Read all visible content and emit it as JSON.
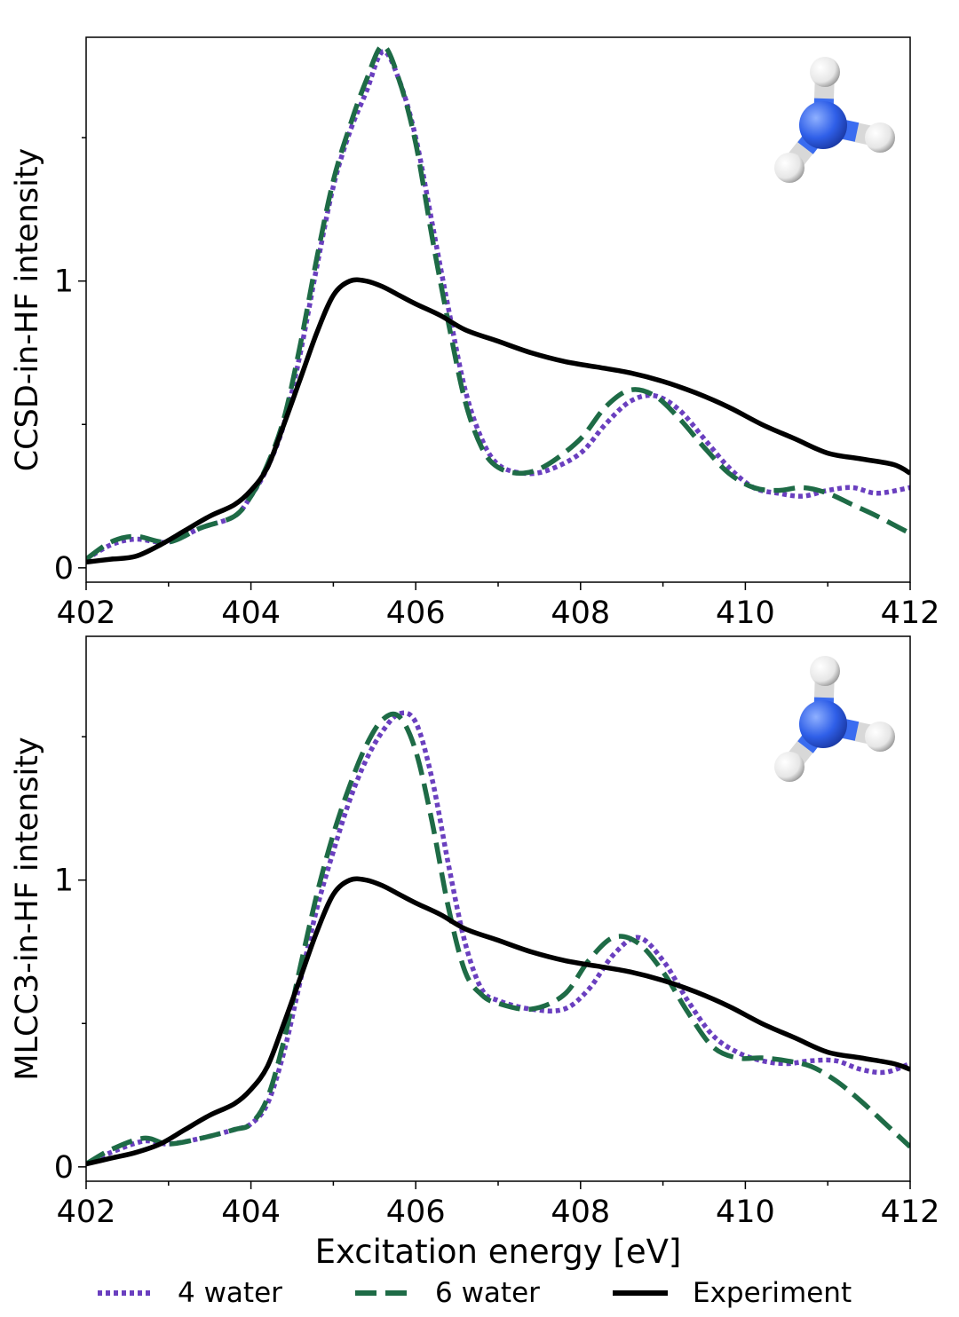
{
  "chart_data": [
    {
      "type": "line",
      "ylabel": "CCSD-in-HF intensity",
      "xlabel": "",
      "xlim": [
        402,
        412
      ],
      "ylim": [
        -0.05,
        1.85
      ],
      "xticks": [
        "402",
        "404",
        "406",
        "408",
        "410",
        "412"
      ],
      "yticks": [
        "0",
        "1"
      ],
      "inset_icon": "ammonia-molecule-icon",
      "series": [
        {
          "name": "4 water",
          "style": "dotted",
          "color": "#6a3fbf",
          "x": [
            402.0,
            402.3,
            402.6,
            403.0,
            403.4,
            403.8,
            404.0,
            404.2,
            404.4,
            404.6,
            404.8,
            405.0,
            405.2,
            405.4,
            405.6,
            405.8,
            406.0,
            406.2,
            406.4,
            406.6,
            406.8,
            407.0,
            407.3,
            407.6,
            408.0,
            408.3,
            408.6,
            408.9,
            409.2,
            409.5,
            409.8,
            410.1,
            410.4,
            410.7,
            411.0,
            411.3,
            411.6,
            412.0
          ],
          "y": [
            0.03,
            0.08,
            0.1,
            0.09,
            0.14,
            0.18,
            0.25,
            0.35,
            0.5,
            0.75,
            1.05,
            1.33,
            1.52,
            1.66,
            1.8,
            1.7,
            1.5,
            1.2,
            0.9,
            0.62,
            0.45,
            0.36,
            0.33,
            0.34,
            0.4,
            0.5,
            0.58,
            0.6,
            0.55,
            0.45,
            0.35,
            0.28,
            0.26,
            0.25,
            0.27,
            0.28,
            0.26,
            0.28
          ]
        },
        {
          "name": "6 water",
          "style": "dashed",
          "color": "#1e6b46",
          "x": [
            402.0,
            402.3,
            402.6,
            403.0,
            403.4,
            403.8,
            404.0,
            404.2,
            404.4,
            404.6,
            404.8,
            405.0,
            405.2,
            405.4,
            405.6,
            405.8,
            406.0,
            406.2,
            406.4,
            406.6,
            406.8,
            407.0,
            407.3,
            407.6,
            408.0,
            408.3,
            408.6,
            408.9,
            409.2,
            409.5,
            409.8,
            410.1,
            410.4,
            410.7,
            411.0,
            411.3,
            411.6,
            412.0
          ],
          "y": [
            0.03,
            0.09,
            0.11,
            0.09,
            0.14,
            0.18,
            0.25,
            0.36,
            0.52,
            0.78,
            1.08,
            1.35,
            1.54,
            1.7,
            1.82,
            1.7,
            1.48,
            1.15,
            0.85,
            0.58,
            0.42,
            0.35,
            0.33,
            0.36,
            0.45,
            0.56,
            0.62,
            0.6,
            0.52,
            0.42,
            0.33,
            0.28,
            0.27,
            0.28,
            0.26,
            0.22,
            0.18,
            0.12
          ]
        },
        {
          "name": "Experiment",
          "style": "solid",
          "color": "#000000",
          "x": [
            402.0,
            402.3,
            402.6,
            402.9,
            403.2,
            403.5,
            403.8,
            404.0,
            404.2,
            404.4,
            404.6,
            404.8,
            405.0,
            405.2,
            405.4,
            405.6,
            405.8,
            406.0,
            406.3,
            406.6,
            407.0,
            407.4,
            407.8,
            408.2,
            408.6,
            409.0,
            409.4,
            409.8,
            410.2,
            410.6,
            411.0,
            411.4,
            411.8,
            412.0
          ],
          "y": [
            0.02,
            0.03,
            0.04,
            0.08,
            0.13,
            0.18,
            0.22,
            0.27,
            0.35,
            0.5,
            0.66,
            0.82,
            0.95,
            1.0,
            1.0,
            0.98,
            0.95,
            0.92,
            0.88,
            0.83,
            0.79,
            0.75,
            0.72,
            0.7,
            0.68,
            0.65,
            0.61,
            0.56,
            0.5,
            0.45,
            0.4,
            0.38,
            0.36,
            0.33
          ]
        }
      ]
    },
    {
      "type": "line",
      "ylabel": "MLCC3-in-HF intensity",
      "xlabel": "Excitation energy [eV]",
      "xlim": [
        402,
        412
      ],
      "ylim": [
        -0.05,
        1.85
      ],
      "xticks": [
        "402",
        "404",
        "406",
        "408",
        "410",
        "412"
      ],
      "yticks": [
        "0",
        "1"
      ],
      "inset_icon": "ammonia-molecule-icon",
      "series": [
        {
          "name": "4 water",
          "style": "dotted",
          "color": "#6a3fbf",
          "x": [
            402.0,
            402.3,
            402.7,
            403.0,
            403.4,
            403.8,
            404.0,
            404.2,
            404.4,
            404.6,
            404.8,
            405.0,
            405.2,
            405.4,
            405.6,
            405.8,
            406.0,
            406.2,
            406.4,
            406.6,
            406.8,
            407.0,
            407.4,
            407.8,
            408.1,
            408.4,
            408.7,
            409.0,
            409.3,
            409.6,
            409.9,
            410.2,
            410.5,
            410.8,
            411.1,
            411.4,
            411.7,
            412.0
          ],
          "y": [
            0.01,
            0.05,
            0.09,
            0.08,
            0.1,
            0.13,
            0.15,
            0.22,
            0.4,
            0.65,
            0.9,
            1.1,
            1.28,
            1.42,
            1.52,
            1.58,
            1.55,
            1.35,
            1.05,
            0.78,
            0.62,
            0.58,
            0.55,
            0.55,
            0.62,
            0.74,
            0.8,
            0.72,
            0.58,
            0.46,
            0.4,
            0.37,
            0.36,
            0.37,
            0.37,
            0.34,
            0.33,
            0.36
          ]
        },
        {
          "name": "6 water",
          "style": "dashed",
          "color": "#1e6b46",
          "x": [
            402.0,
            402.3,
            402.7,
            403.0,
            403.4,
            403.8,
            404.0,
            404.2,
            404.4,
            404.6,
            404.8,
            405.0,
            405.2,
            405.4,
            405.6,
            405.8,
            406.0,
            406.2,
            406.4,
            406.6,
            406.8,
            407.0,
            407.4,
            407.8,
            408.1,
            408.4,
            408.7,
            409.0,
            409.3,
            409.6,
            409.9,
            410.2,
            410.5,
            410.8,
            411.1,
            411.4,
            411.7,
            412.0
          ],
          "y": [
            0.01,
            0.06,
            0.1,
            0.08,
            0.1,
            0.13,
            0.15,
            0.24,
            0.44,
            0.7,
            0.95,
            1.16,
            1.33,
            1.47,
            1.56,
            1.57,
            1.45,
            1.2,
            0.9,
            0.68,
            0.6,
            0.57,
            0.55,
            0.6,
            0.72,
            0.8,
            0.78,
            0.68,
            0.54,
            0.42,
            0.38,
            0.38,
            0.37,
            0.35,
            0.3,
            0.23,
            0.15,
            0.07
          ]
        },
        {
          "name": "Experiment",
          "style": "solid",
          "color": "#000000",
          "x": [
            402.0,
            402.3,
            402.6,
            402.9,
            403.2,
            403.5,
            403.8,
            404.0,
            404.2,
            404.4,
            404.6,
            404.8,
            405.0,
            405.2,
            405.4,
            405.6,
            405.8,
            406.0,
            406.3,
            406.6,
            407.0,
            407.4,
            407.8,
            408.2,
            408.6,
            409.0,
            409.4,
            409.8,
            410.2,
            410.6,
            411.0,
            411.4,
            411.8,
            412.0
          ],
          "y": [
            0.01,
            0.03,
            0.05,
            0.08,
            0.13,
            0.18,
            0.22,
            0.27,
            0.35,
            0.5,
            0.66,
            0.82,
            0.95,
            1.0,
            1.0,
            0.98,
            0.95,
            0.92,
            0.88,
            0.83,
            0.79,
            0.75,
            0.72,
            0.7,
            0.68,
            0.65,
            0.61,
            0.56,
            0.5,
            0.45,
            0.4,
            0.38,
            0.36,
            0.34
          ]
        }
      ]
    }
  ],
  "legend": [
    {
      "label": "4 water",
      "style": "dotted",
      "color": "#6a3fbf"
    },
    {
      "label": "6 water",
      "style": "dashed",
      "color": "#1e6b46"
    },
    {
      "label": "Experiment",
      "style": "solid",
      "color": "#000000"
    }
  ]
}
